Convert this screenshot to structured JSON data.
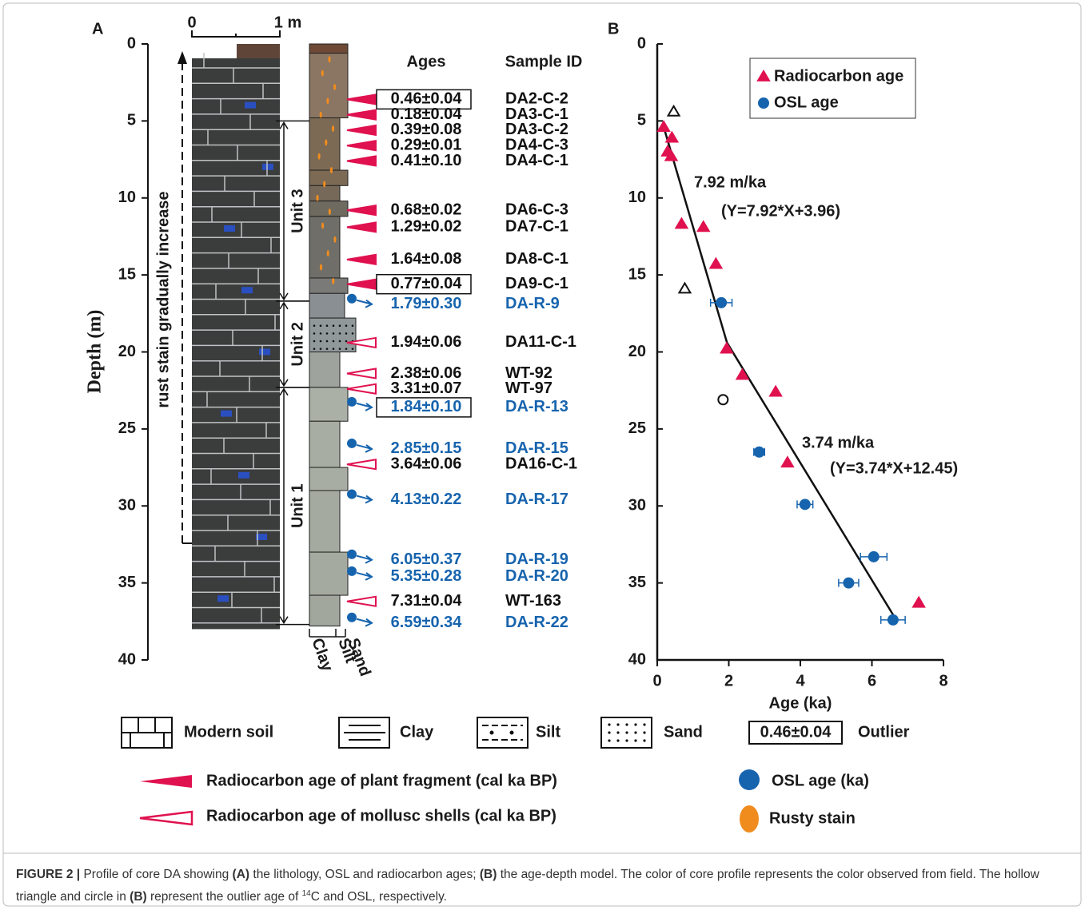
{
  "panel_a": {
    "label": "A",
    "depth_axis": {
      "title": "Depth (m)",
      "lim": [
        0,
        40
      ],
      "ticks": [
        0,
        5,
        10,
        15,
        20,
        25,
        30,
        35,
        40
      ]
    },
    "scale_bar": {
      "start": "0",
      "end": "1 m"
    },
    "rust_note": "rust stain gradually increase",
    "headers": {
      "ages": "Ages",
      "sample_id": "Sample ID"
    },
    "units": [
      {
        "label": "Unit 3",
        "top": 5,
        "bottom": 16.7
      },
      {
        "label": "Unit 2",
        "top": 16.7,
        "bottom": 22.3
      },
      {
        "label": "Unit 1",
        "top": 22.3,
        "bottom": 37.7
      }
    ],
    "column_labels": [
      "Clay",
      "Silt",
      "Sand"
    ],
    "samples": [
      {
        "depth": 3.6,
        "age": "0.46±0.04",
        "id": "DA2-C-2",
        "kind": "plant",
        "outlier": true
      },
      {
        "depth": 4.6,
        "age": "0.18±0.04",
        "id": "DA3-C-1",
        "kind": "plant",
        "outlier": false
      },
      {
        "depth": 5.6,
        "age": "0.39±0.08",
        "id": "DA3-C-2",
        "kind": "plant",
        "outlier": false
      },
      {
        "depth": 6.6,
        "age": "0.29±0.01",
        "id": "DA4-C-3",
        "kind": "plant",
        "outlier": false
      },
      {
        "depth": 7.6,
        "age": "0.41±0.10",
        "id": "DA4-C-1",
        "kind": "plant",
        "outlier": false
      },
      {
        "depth": 10.8,
        "age": "0.68±0.02",
        "id": "DA6-C-3",
        "kind": "plant",
        "outlier": false
      },
      {
        "depth": 11.9,
        "age": "1.29±0.02",
        "id": "DA7-C-1",
        "kind": "plant",
        "outlier": false
      },
      {
        "depth": 14,
        "age": "1.64±0.08",
        "id": "DA8-C-1",
        "kind": "plant",
        "outlier": false
      },
      {
        "depth": 15.6,
        "age": "0.77±0.04",
        "id": "DA9-C-1",
        "kind": "plant",
        "outlier": true
      },
      {
        "depth": 16.9,
        "age": "1.79±0.30",
        "id": "DA-R-9",
        "kind": "osl",
        "outlier": false
      },
      {
        "depth": 19.4,
        "age": "1.94±0.06",
        "id": "DA11-C-1",
        "kind": "shell",
        "outlier": false
      },
      {
        "depth": 21.4,
        "age": "2.38±0.06",
        "id": "WT-92",
        "kind": "shell",
        "outlier": false
      },
      {
        "depth": 22.4,
        "age": "3.31±0.07",
        "id": "WT-97",
        "kind": "shell",
        "outlier": false
      },
      {
        "depth": 23.6,
        "age": "1.84±0.10",
        "id": "DA-R-13",
        "kind": "osl",
        "outlier": true
      },
      {
        "depth": 26.3,
        "age": "2.85±0.15",
        "id": "DA-R-15",
        "kind": "osl",
        "outlier": false
      },
      {
        "depth": 27.3,
        "age": "3.64±0.06",
        "id": "DA16-C-1",
        "kind": "shell",
        "outlier": false
      },
      {
        "depth": 29.6,
        "age": "4.13±0.22",
        "id": "DA-R-17",
        "kind": "osl",
        "outlier": false
      },
      {
        "depth": 33.5,
        "age": "6.05±0.37",
        "id": "DA-R-19",
        "kind": "osl",
        "outlier": false
      },
      {
        "depth": 34.6,
        "age": "5.35±0.28",
        "id": "DA-R-20",
        "kind": "osl",
        "outlier": false
      },
      {
        "depth": 36.2,
        "age": "7.31±0.04",
        "id": "WT-163",
        "kind": "shell",
        "outlier": false
      },
      {
        "depth": 37.6,
        "age": "6.59±0.34",
        "id": "DA-R-22",
        "kind": "osl",
        "outlier": false
      }
    ]
  },
  "chart_data": {
    "type": "scatter",
    "label": "B",
    "x_label": "Age (ka)",
    "xlim": [
      0,
      8
    ],
    "xticks": [
      0,
      2,
      4,
      6,
      8
    ],
    "ylim": [
      0,
      40
    ],
    "yticks": [
      0,
      5,
      10,
      15,
      20,
      25,
      30,
      35,
      40
    ],
    "y_inverted": true,
    "series": [
      {
        "name": "Radiocarbon age",
        "color": "#e0114f",
        "marker": "triangle",
        "x": [
          0.18,
          0.41,
          0.29,
          0.39,
          0.68,
          1.29,
          1.64,
          1.94,
          2.38,
          3.31,
          3.64,
          7.31
        ],
        "values": [
          5.4,
          6.1,
          7.0,
          7.3,
          11.7,
          11.9,
          14.3,
          19.8,
          21.5,
          22.6,
          27.2,
          36.3
        ]
      },
      {
        "name": "OSL age",
        "color": "#1764ae",
        "marker": "circle",
        "x": [
          1.79,
          2.85,
          4.13,
          6.05,
          5.35,
          6.59
        ],
        "values": [
          16.8,
          26.5,
          29.9,
          33.3,
          35.0,
          37.4
        ],
        "xerr": [
          0.3,
          0.15,
          0.22,
          0.37,
          0.28,
          0.34
        ]
      }
    ],
    "outliers": {
      "triangle": {
        "x": [
          0.46,
          0.77
        ],
        "values": [
          4.4,
          15.9
        ]
      },
      "circle": {
        "x": [
          1.84
        ],
        "values": [
          23.1
        ]
      }
    },
    "fit": {
      "x": [
        0.15,
        1.95,
        6.6
      ],
      "values": [
        5.15,
        19.4,
        37.1
      ]
    },
    "annotations": [
      "7.92  m/ka",
      "(Y=7.92*X+3.96)",
      "3.74 m/ka",
      "(Y=3.74*X+12.45)"
    ],
    "legend": "top-left"
  },
  "legend": {
    "modern_soil": "Modern soil",
    "clay": "Clay",
    "silt": "Silt",
    "sand": "Sand",
    "outlier_example": "0.46±0.04",
    "outlier": "Outlier",
    "plant": "Radiocarbon  age of plant fragment  (cal ka BP)",
    "shell": "Radiocarbon  age of mollusc shells (cal ka BP)",
    "osl": "OSL age (ka)",
    "rust": "Rusty stain"
  },
  "caption": [
    {
      "text": "FIGURE 2 |",
      "style": "bold"
    },
    {
      "text": " Profile of core DA showing ",
      "style": "normal"
    },
    {
      "text": "(A)",
      "style": "bold"
    },
    {
      "text": " the lithology, OSL and radiocarbon ages; ",
      "style": "normal"
    },
    {
      "text": "(B)",
      "style": "bold"
    },
    {
      "text": " the age-depth model. The color of core profile represents the color observed from field. The hollow triangle and circle in ",
      "style": "normal"
    },
    {
      "text": "(B)",
      "style": "bold"
    },
    {
      "text": " represent the outlier age of ",
      "style": "normal"
    },
    {
      "text": "14",
      "style": "sup"
    },
    {
      "text": "C and OSL, respectively.",
      "style": "normal"
    }
  ]
}
